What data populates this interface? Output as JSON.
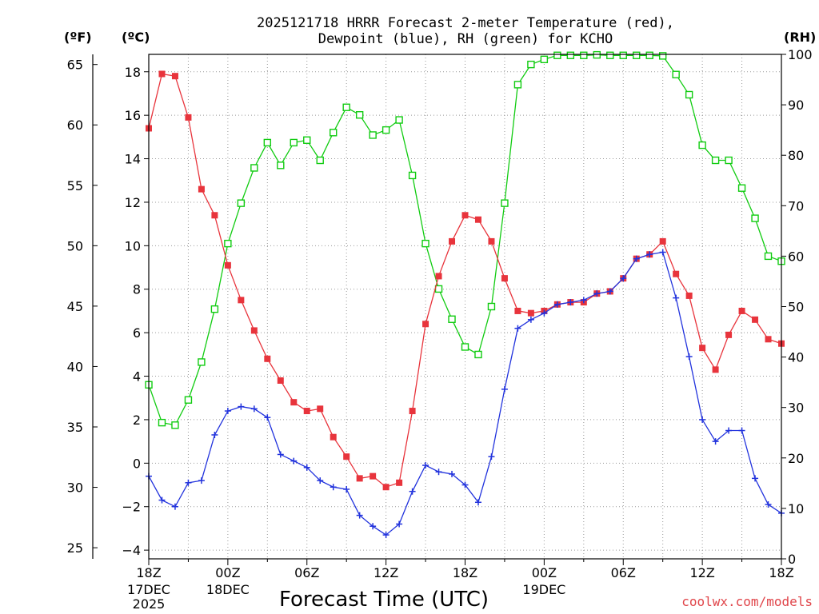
{
  "title_line1": "2025121718 HRRR Forecast 2-meter Temperature (red),",
  "title_line2": "Dewpoint (blue), RH (green) for KCHO",
  "unit_f": "(ºF)",
  "unit_c": "(ºC)",
  "unit_rh": "(RH)",
  "xlabel": "Forecast Time (UTC)",
  "watermark": "coolwx.com/models",
  "colors": {
    "temperature": "#e8343c",
    "dewpoint": "#2233dd",
    "rh": "#11cc11",
    "grid": "#999999"
  },
  "chart_data": {
    "type": "line",
    "title": "2025121718 HRRR Forecast 2-meter Temperature (red), Dewpoint (blue), RH (green) for KCHO",
    "xlabel": "Forecast Time (UTC)",
    "x_hours": [
      0,
      1,
      2,
      3,
      4,
      5,
      6,
      7,
      8,
      9,
      10,
      11,
      12,
      13,
      14,
      15,
      16,
      17,
      18,
      19,
      20,
      21,
      22,
      23,
      24,
      25,
      26,
      27,
      28,
      29,
      30,
      31,
      32,
      33,
      34,
      35,
      36,
      37,
      38,
      39,
      40,
      41,
      42,
      43,
      44,
      45,
      46,
      47,
      48
    ],
    "x_range": [
      0,
      48
    ],
    "x_ticks": [
      {
        "hour": 0,
        "label": "18Z",
        "date": [
          "17DEC",
          "2025"
        ]
      },
      {
        "hour": 6,
        "label": "00Z",
        "date": [
          "18DEC"
        ]
      },
      {
        "hour": 12,
        "label": "06Z",
        "date": []
      },
      {
        "hour": 18,
        "label": "12Z",
        "date": []
      },
      {
        "hour": 24,
        "label": "18Z",
        "date": []
      },
      {
        "hour": 30,
        "label": "00Z",
        "date": [
          "19DEC"
        ]
      },
      {
        "hour": 36,
        "label": "06Z",
        "date": []
      },
      {
        "hour": 42,
        "label": "12Z",
        "date": []
      },
      {
        "hour": 48,
        "label": "18Z",
        "date": []
      }
    ],
    "yaxis_celsius": {
      "range": [
        -4.4,
        18.8
      ],
      "ticks": [
        -4,
        -2,
        0,
        2,
        4,
        6,
        8,
        10,
        12,
        14,
        16,
        18
      ],
      "labels": [
        "−4",
        "−2",
        "0",
        "2",
        "4",
        "6",
        "8",
        "10",
        "12",
        "14",
        "16",
        "18"
      ]
    },
    "yaxis_fahrenheit": {
      "ticks": [
        25,
        30,
        35,
        40,
        45,
        50,
        55,
        60,
        65
      ],
      "labels": [
        "25",
        "30",
        "35",
        "40",
        "45",
        "50",
        "55",
        "60",
        "65"
      ]
    },
    "yaxis_rh": {
      "range": [
        0,
        100
      ],
      "ticks": [
        0,
        10,
        20,
        30,
        40,
        50,
        60,
        70,
        80,
        90,
        100
      ],
      "labels": [
        "0",
        "10",
        "20",
        "30",
        "40",
        "50",
        "60",
        "70",
        "80",
        "90",
        "100"
      ]
    },
    "series": [
      {
        "name": "2-meter Temperature",
        "key": "temperature",
        "units": "C",
        "marker": "filled-square",
        "values": [
          15.4,
          17.9,
          17.8,
          15.9,
          12.6,
          11.4,
          9.1,
          7.5,
          6.1,
          4.8,
          3.8,
          2.8,
          2.4,
          2.5,
          1.2,
          0.3,
          -0.7,
          -0.6,
          -1.1,
          -0.9,
          2.4,
          6.4,
          8.6,
          10.2,
          11.4,
          11.2,
          10.2,
          8.5,
          7.0,
          6.9,
          7.0,
          7.3,
          7.4,
          7.4,
          7.8,
          7.9,
          8.5,
          9.4,
          9.6,
          10.2,
          8.7,
          7.7,
          5.3,
          4.3,
          5.9,
          7.0,
          6.6,
          5.7,
          5.5
        ]
      },
      {
        "name": "Dewpoint",
        "key": "dewpoint",
        "units": "C",
        "marker": "plus",
        "values": [
          -0.6,
          -1.7,
          -2.0,
          -0.9,
          -0.8,
          1.3,
          2.4,
          2.6,
          2.5,
          2.1,
          0.4,
          0.1,
          -0.2,
          -0.8,
          -1.1,
          -1.2,
          -2.4,
          -2.9,
          -3.3,
          -2.8,
          -1.3,
          -0.1,
          -0.4,
          -0.5,
          -1.0,
          -1.8,
          0.3,
          3.4,
          6.2,
          6.6,
          6.9,
          7.3,
          7.4,
          7.5,
          7.8,
          7.9,
          8.5,
          9.4,
          9.6,
          9.7,
          7.6,
          4.9,
          2.0,
          1.0,
          1.5,
          1.5,
          -0.7,
          -1.9,
          -2.3
        ]
      },
      {
        "name": "Relative Humidity",
        "key": "rh",
        "units": "%",
        "marker": "open-square",
        "values": [
          34.5,
          27,
          26.5,
          31.5,
          39,
          49.5,
          62.5,
          70.5,
          77.5,
          82.5,
          78,
          82.5,
          83,
          79,
          84.5,
          89.5,
          88,
          84,
          85,
          87,
          76,
          62.5,
          53.5,
          47.5,
          42,
          40.5,
          50,
          70.5,
          94,
          98,
          99,
          99.8,
          99.8,
          99.8,
          99.9,
          99.8,
          99.8,
          99.8,
          99.8,
          99.7,
          96,
          92,
          82,
          79,
          79,
          73.5,
          67.5,
          60,
          59
        ]
      }
    ]
  }
}
